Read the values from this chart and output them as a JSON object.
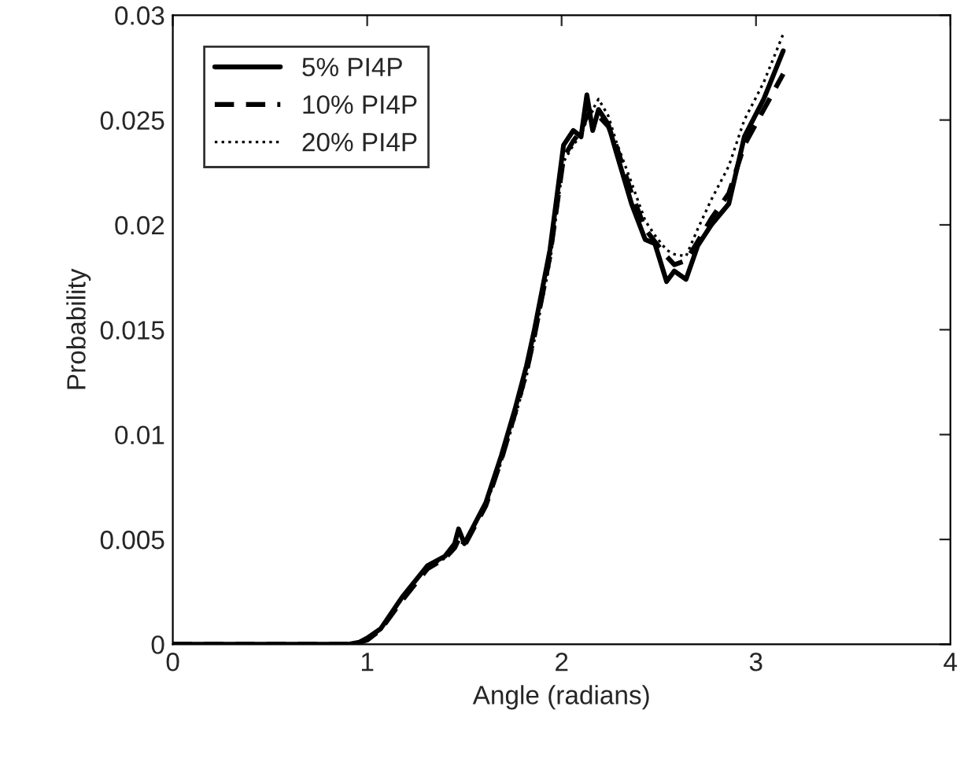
{
  "chart_data": {
    "type": "line",
    "xlabel": "Angle (radians)",
    "ylabel": "Probability",
    "x": [
      0,
      0.5,
      0.9,
      0.96,
      1.0,
      1.07,
      1.18,
      1.31,
      1.4,
      1.45,
      1.47,
      1.5,
      1.61,
      1.69,
      1.76,
      1.82,
      1.86,
      1.94,
      2.01,
      2.06,
      2.1,
      2.13,
      2.16,
      2.19,
      2.24,
      2.28,
      2.36,
      2.43,
      2.48,
      2.54,
      2.58,
      2.64,
      2.7,
      2.77,
      2.86,
      2.94,
      3.04,
      3.14
    ],
    "series": [
      {
        "name": "5% PI4P",
        "color": "#000000",
        "line_style": "solid",
        "values": [
          0,
          0,
          0,
          0.0001,
          0.0003,
          0.00075,
          0.00225,
          0.00375,
          0.0042,
          0.0048,
          0.0055,
          0.0048,
          0.00675,
          0.009,
          0.0112,
          0.0133,
          0.015,
          0.0188,
          0.0238,
          0.0245,
          0.0242,
          0.0262,
          0.0245,
          0.0255,
          0.0248,
          0.0235,
          0.021,
          0.0193,
          0.0191,
          0.0173,
          0.0178,
          0.0174,
          0.019,
          0.02,
          0.021,
          0.0242,
          0.026,
          0.0283
        ]
      },
      {
        "name": "10% PI4P",
        "color": "#000000",
        "line_style": "dashed",
        "values": [
          0,
          0,
          0,
          0.0001,
          0.0002,
          0.0007,
          0.0021,
          0.0036,
          0.0041,
          0.0046,
          0.005,
          0.0047,
          0.0066,
          0.0088,
          0.011,
          0.013,
          0.0147,
          0.0185,
          0.0232,
          0.024,
          0.0245,
          0.0252,
          0.0255,
          0.0252,
          0.0247,
          0.0238,
          0.0215,
          0.0198,
          0.0192,
          0.0185,
          0.0181,
          0.0183,
          0.0192,
          0.0203,
          0.0215,
          0.0238,
          0.0255,
          0.0272
        ]
      },
      {
        "name": "20% PI4P",
        "color": "#000000",
        "line_style": "dotted",
        "values": [
          0,
          0,
          0,
          0.0001,
          0.0002,
          0.0007,
          0.0022,
          0.0037,
          0.0041,
          0.0046,
          0.0049,
          0.0048,
          0.0066,
          0.0087,
          0.0108,
          0.0128,
          0.0145,
          0.0182,
          0.023,
          0.0238,
          0.0243,
          0.025,
          0.0255,
          0.026,
          0.0252,
          0.024,
          0.022,
          0.0202,
          0.0195,
          0.0188,
          0.0186,
          0.0185,
          0.0198,
          0.0212,
          0.0228,
          0.025,
          0.0268,
          0.0291
        ]
      }
    ],
    "xlim": [
      0,
      4
    ],
    "xticks": [
      0,
      1,
      2,
      3,
      4
    ],
    "ylim": [
      0,
      0.03
    ],
    "yticks": [
      0,
      0.005,
      0.01,
      0.015,
      0.02,
      0.025,
      0.03
    ],
    "grid": false,
    "legend": "top left"
  }
}
